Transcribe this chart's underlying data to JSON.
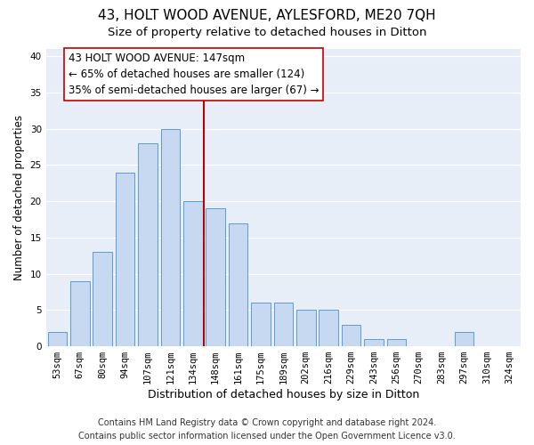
{
  "title": "43, HOLT WOOD AVENUE, AYLESFORD, ME20 7QH",
  "subtitle": "Size of property relative to detached houses in Ditton",
  "xlabel": "Distribution of detached houses by size in Ditton",
  "ylabel": "Number of detached properties",
  "bar_labels": [
    "53sqm",
    "67sqm",
    "80sqm",
    "94sqm",
    "107sqm",
    "121sqm",
    "134sqm",
    "148sqm",
    "161sqm",
    "175sqm",
    "189sqm",
    "202sqm",
    "216sqm",
    "229sqm",
    "243sqm",
    "256sqm",
    "270sqm",
    "283sqm",
    "297sqm",
    "310sqm",
    "324sqm"
  ],
  "bar_heights": [
    2,
    9,
    13,
    24,
    28,
    30,
    20,
    19,
    17,
    6,
    6,
    5,
    5,
    3,
    1,
    1,
    0,
    0,
    2,
    0,
    0
  ],
  "bar_color": "#c6d9f0",
  "bar_edgecolor": "#5b9bd5",
  "vline_color": "#c00000",
  "vline_x_index": 7,
  "annotation_line0": "43 HOLT WOOD AVENUE: 147sqm",
  "annotation_line1": "← 65% of detached houses are smaller (124)",
  "annotation_line2": "35% of semi-detached houses are larger (67) →",
  "annotation_box_edgecolor": "#c00000",
  "annotation_box_facecolor": "#ffffff",
  "ylim": [
    0,
    41
  ],
  "yticks": [
    0,
    5,
    10,
    15,
    20,
    25,
    30,
    35,
    40
  ],
  "footer1": "Contains HM Land Registry data © Crown copyright and database right 2024.",
  "footer2": "Contains public sector information licensed under the Open Government Licence v3.0.",
  "background_color": "#e8eef8",
  "fig_background": "#ffffff",
  "title_fontsize": 11,
  "subtitle_fontsize": 9.5,
  "xlabel_fontsize": 9,
  "ylabel_fontsize": 8.5,
  "tick_fontsize": 7.5,
  "annotation_fontsize": 8.5,
  "footer_fontsize": 7
}
